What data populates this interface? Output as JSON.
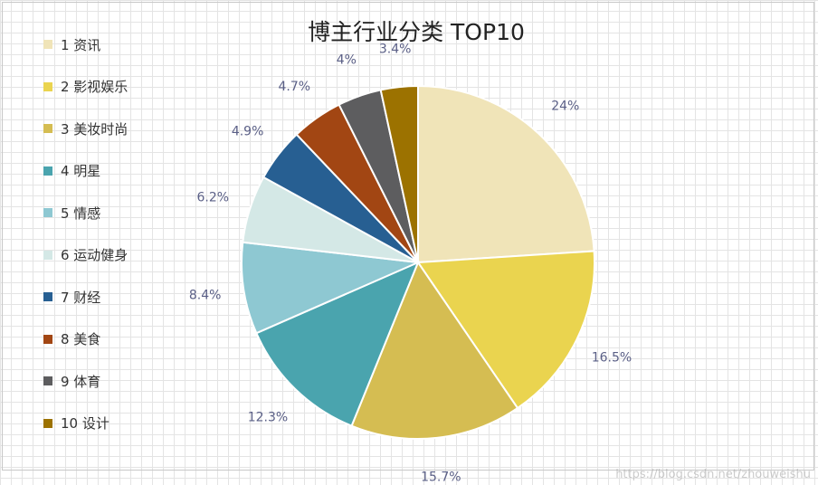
{
  "chart_data": {
    "type": "pie",
    "title": "博主行业分类  TOP10",
    "legend_position": "left",
    "grid": true,
    "categories": [
      "1 资讯",
      "2 影视娱乐",
      "3 美妆时尚",
      "4 明星",
      "5 情感",
      "6 运动健身",
      "7 财经",
      "8 美食",
      "9 体育",
      "10 设计"
    ],
    "values": [
      24,
      16.5,
      15.7,
      12.3,
      8.4,
      6.2,
      4.9,
      4.7,
      4,
      3.4
    ],
    "value_labels": [
      "24%",
      "16.5%",
      "15.7%",
      "12.3%",
      "8.4%",
      "6.2%",
      "4.9%",
      "4.7%",
      "4%",
      "3.4%"
    ],
    "colors": [
      "#f0e4b8",
      "#ead44f",
      "#d5bd52",
      "#4aa4ae",
      "#8ec8d2",
      "#d4e8e6",
      "#275f92",
      "#a24613",
      "#5d5d5f",
      "#9c7200"
    ]
  },
  "watermark": "https://blog.csdn.net/zhouweishu"
}
